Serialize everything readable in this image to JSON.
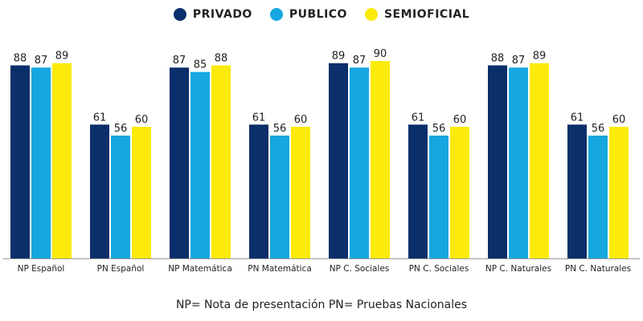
{
  "chart_data": {
    "type": "bar",
    "title": "",
    "xlabel": "",
    "ylabel": "",
    "ylim": [
      0,
      90
    ],
    "grid": false,
    "legend_position": "top-center",
    "categories": [
      "NP Español",
      "PN Español",
      "NP Matemática",
      "PN Matemática",
      "NP C. Sociales",
      "PN C. Sociales",
      "NP C. Naturales",
      "PN C. Naturales"
    ],
    "series": [
      {
        "name": "PRIVADO",
        "color": "#0b2f6b",
        "values": [
          88,
          61,
          87,
          61,
          89,
          61,
          88,
          61
        ]
      },
      {
        "name": "PUBLICO",
        "color": "#16a7e0",
        "values": [
          87,
          56,
          85,
          56,
          87,
          56,
          87,
          56
        ]
      },
      {
        "name": "SEMIOFICIAL",
        "color": "#fbea0c",
        "values": [
          89,
          60,
          88,
          60,
          90,
          60,
          89,
          60
        ]
      }
    ],
    "footnote": "NP= Nota de presentación  PN= Pruebas Nacionales"
  }
}
